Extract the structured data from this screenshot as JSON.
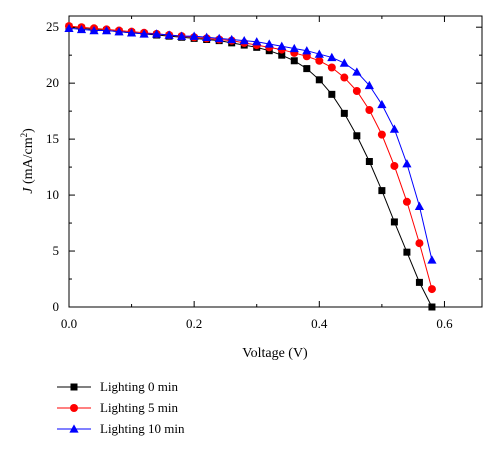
{
  "colors": {
    "series_0": "#000000",
    "series_1": "#ff0000",
    "series_2": "#0000ff"
  },
  "chart_data": {
    "type": "line",
    "xlabel": "Voltage (V)",
    "ylabel": "J (mA/cm2)",
    "xlim": [
      0.0,
      0.66
    ],
    "ylim": [
      0,
      26
    ],
    "xticks": [
      0.0,
      0.2,
      0.4,
      0.6
    ],
    "yticks": [
      0,
      5,
      10,
      15,
      20,
      25
    ],
    "grid": false,
    "legend": "bottom-left, below plot",
    "series": [
      {
        "name": "Lighting 0 min",
        "marker": "square",
        "color": "#000000",
        "x": [
          0.0,
          0.02,
          0.04,
          0.06,
          0.08,
          0.1,
          0.12,
          0.14,
          0.16,
          0.18,
          0.2,
          0.22,
          0.24,
          0.26,
          0.28,
          0.3,
          0.32,
          0.34,
          0.36,
          0.38,
          0.4,
          0.42,
          0.44,
          0.46,
          0.48,
          0.5,
          0.52,
          0.54,
          0.56,
          0.58
        ],
        "y": [
          25.0,
          24.9,
          24.8,
          24.7,
          24.6,
          24.5,
          24.4,
          24.3,
          24.2,
          24.1,
          24.0,
          23.9,
          23.8,
          23.6,
          23.4,
          23.2,
          22.9,
          22.5,
          22.0,
          21.3,
          20.3,
          19.0,
          17.3,
          15.3,
          13.0,
          10.4,
          7.6,
          4.9,
          2.2,
          0.0
        ]
      },
      {
        "name": "Lighting 5 min",
        "marker": "circle",
        "color": "#ff0000",
        "x": [
          0.0,
          0.02,
          0.04,
          0.06,
          0.08,
          0.1,
          0.12,
          0.14,
          0.16,
          0.18,
          0.2,
          0.22,
          0.24,
          0.26,
          0.28,
          0.3,
          0.32,
          0.34,
          0.36,
          0.38,
          0.4,
          0.42,
          0.44,
          0.46,
          0.48,
          0.5,
          0.52,
          0.54,
          0.56,
          0.58
        ],
        "y": [
          25.1,
          25.0,
          24.9,
          24.8,
          24.7,
          24.6,
          24.5,
          24.4,
          24.3,
          24.2,
          24.1,
          24.0,
          23.9,
          23.8,
          23.6,
          23.4,
          23.2,
          23.0,
          22.7,
          22.4,
          22.0,
          21.4,
          20.5,
          19.3,
          17.6,
          15.4,
          12.6,
          9.4,
          5.7,
          1.6
        ]
      },
      {
        "name": "Lighting 10 min",
        "marker": "triangle",
        "color": "#0000ff",
        "x": [
          0.0,
          0.02,
          0.04,
          0.06,
          0.08,
          0.1,
          0.12,
          0.14,
          0.16,
          0.18,
          0.2,
          0.22,
          0.24,
          0.26,
          0.28,
          0.3,
          0.32,
          0.34,
          0.36,
          0.38,
          0.4,
          0.42,
          0.44,
          0.46,
          0.48,
          0.5,
          0.52,
          0.54,
          0.56,
          0.58
        ],
        "y": [
          24.9,
          24.8,
          24.7,
          24.7,
          24.6,
          24.5,
          24.4,
          24.4,
          24.3,
          24.2,
          24.2,
          24.1,
          24.0,
          23.9,
          23.8,
          23.7,
          23.5,
          23.3,
          23.1,
          22.9,
          22.6,
          22.3,
          21.8,
          21.0,
          19.8,
          18.1,
          15.9,
          12.8,
          9.0,
          4.2
        ]
      }
    ]
  }
}
